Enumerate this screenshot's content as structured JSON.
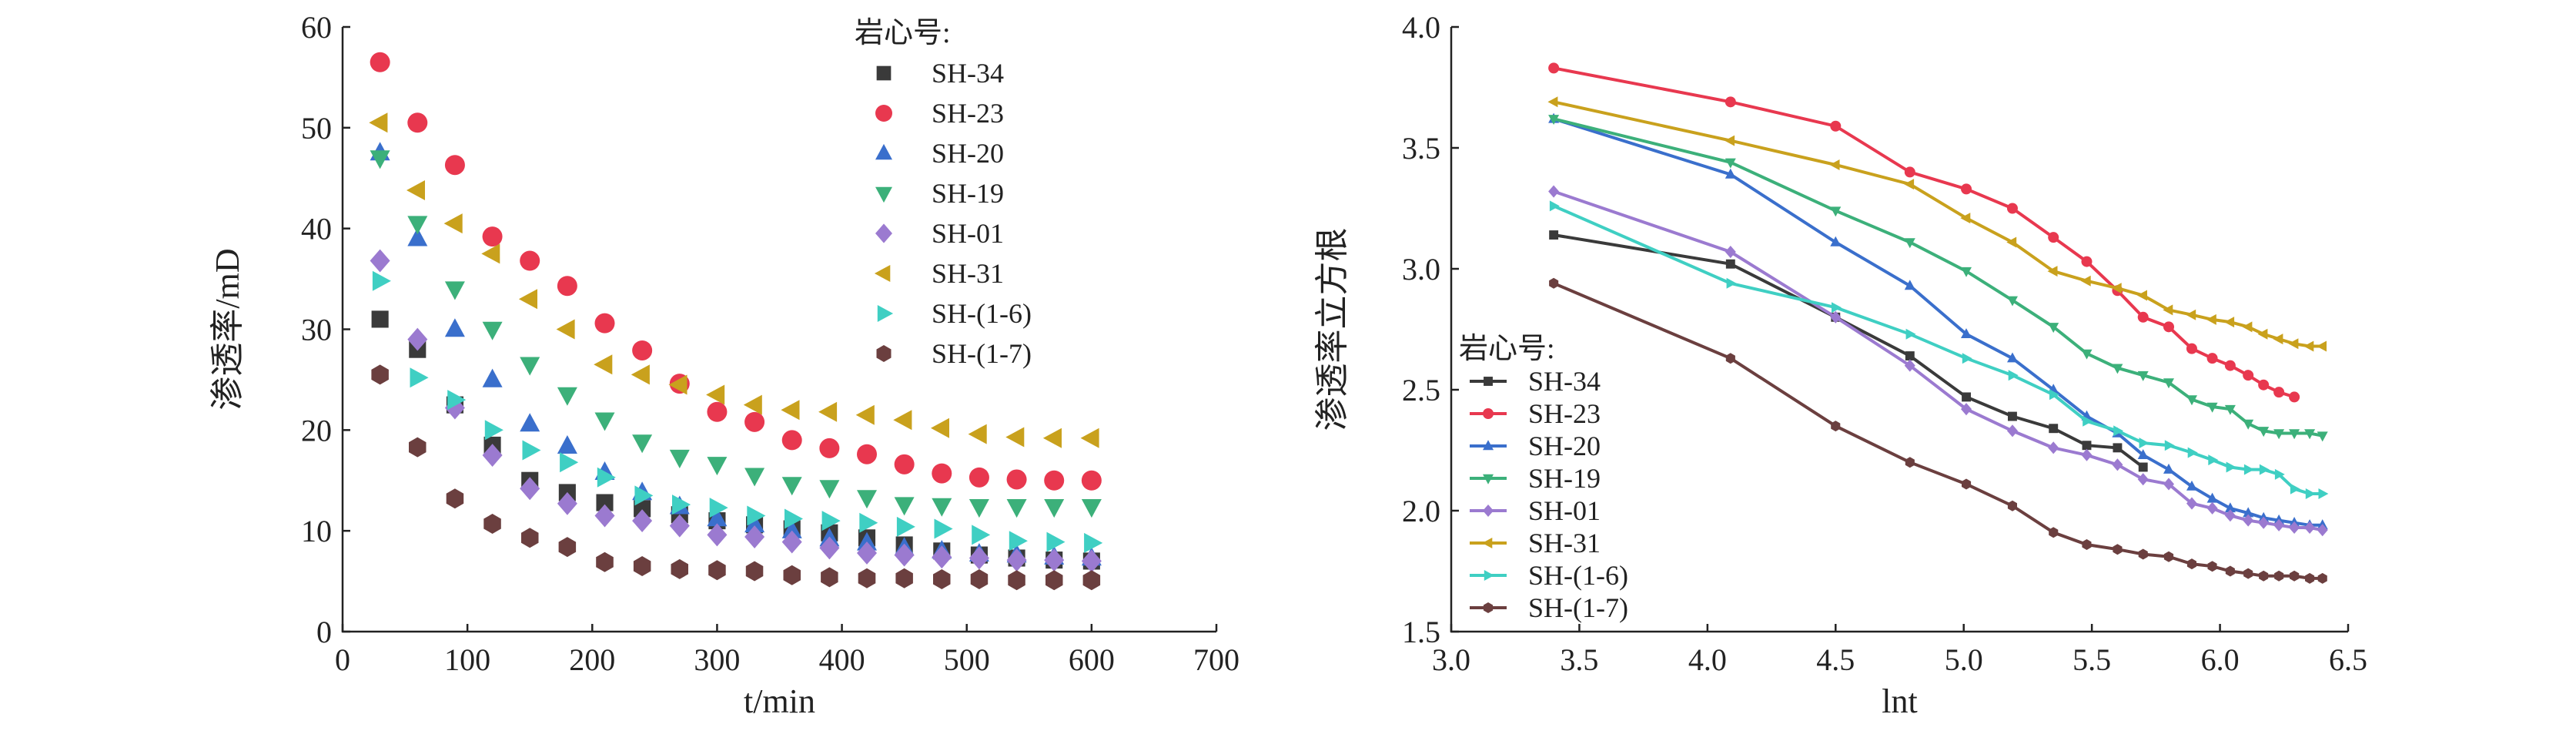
{
  "chart_data": [
    {
      "type": "scatter",
      "xlabel": "t/min",
      "ylabel": "渗透率/mD",
      "xlim": [
        0,
        700
      ],
      "ylim": [
        0,
        60
      ],
      "xticks": [
        0,
        100,
        200,
        300,
        400,
        500,
        600,
        700
      ],
      "yticks": [
        0,
        10,
        20,
        30,
        40,
        50,
        60
      ],
      "grid": false,
      "legend_title": "岩心号:",
      "legend_position": "top-right",
      "x": [
        30,
        60,
        90,
        120,
        150,
        180,
        210,
        240,
        270,
        300,
        330,
        360,
        390,
        420,
        450,
        480,
        510,
        540,
        570,
        600
      ],
      "series": [
        {
          "name": "SH-34",
          "marker": "square",
          "color": "#3a3a3a",
          "values": [
            31,
            28,
            22.5,
            18.5,
            15,
            13.8,
            12.8,
            12.2,
            11.6,
            11,
            10.6,
            10.2,
            9.8,
            9.3,
            8.6,
            8,
            7.6,
            7.3,
            7.1,
            7
          ]
        },
        {
          "name": "SH-23",
          "marker": "circle",
          "color": "#e8384f",
          "values": [
            56.5,
            50.5,
            46.3,
            39.2,
            36.8,
            34.3,
            30.6,
            27.9,
            24.6,
            21.8,
            20.8,
            19,
            18.2,
            17.6,
            16.6,
            15.7,
            15.3,
            15.1,
            15,
            15
          ]
        },
        {
          "name": "SH-20",
          "marker": "triangle-up",
          "color": "#3a6fcc",
          "values": [
            47.5,
            39,
            30,
            25,
            20.6,
            18.4,
            15.8,
            13.8,
            12.4,
            11.2,
            10.6,
            10,
            9.2,
            8.8,
            8.3,
            8,
            7.7,
            7.6,
            7.4,
            7.3
          ]
        },
        {
          "name": "SH-19",
          "marker": "triangle-down",
          "color": "#3cb07a",
          "values": [
            47,
            40.5,
            34,
            30,
            26.5,
            23.5,
            21,
            18.8,
            17.3,
            16.6,
            15.5,
            14.6,
            14.3,
            13.3,
            12.6,
            12.5,
            12.4,
            12.4,
            12.4,
            12.4
          ]
        },
        {
          "name": "SH-01",
          "marker": "diamond",
          "color": "#9b7ad0",
          "values": [
            36.8,
            29,
            22.2,
            17.5,
            14.2,
            12.7,
            11.5,
            11,
            10.5,
            9.6,
            9.4,
            8.9,
            8.3,
            7.8,
            7.6,
            7.4,
            7.3,
            7.1,
            7.1,
            7
          ]
        },
        {
          "name": "SH-31",
          "marker": "triangle-left",
          "color": "#c9a11d",
          "values": [
            50.5,
            43.8,
            40.5,
            37.5,
            33,
            30,
            26.5,
            25.5,
            24.5,
            23.5,
            22.5,
            22,
            21.8,
            21.5,
            21,
            20.2,
            19.6,
            19.3,
            19.2,
            19.2
          ]
        },
        {
          "name": "SH-(1-6)",
          "marker": "triangle-right",
          "color": "#3fcfc3",
          "values": [
            34.8,
            25.2,
            23,
            20,
            18,
            16.8,
            15.3,
            13.5,
            12.6,
            12.3,
            11.5,
            11.2,
            11,
            10.8,
            10.4,
            10.2,
            9.6,
            9,
            8.9,
            8.8
          ]
        },
        {
          "name": "SH-(1-7)",
          "marker": "hexagon",
          "color": "#6b3f3f",
          "values": [
            25.5,
            18.3,
            13.2,
            10.7,
            9.3,
            8.4,
            6.9,
            6.5,
            6.2,
            6.1,
            6,
            5.6,
            5.4,
            5.3,
            5.3,
            5.2,
            5.2,
            5.1,
            5.1,
            5.1
          ]
        }
      ]
    },
    {
      "type": "line",
      "xlabel": "lnt",
      "ylabel": "渗透率立方根",
      "xlim": [
        3.0,
        6.5
      ],
      "ylim": [
        1.5,
        4.0
      ],
      "xticks": [
        "3.0",
        "3.5",
        "4.0",
        "4.5",
        "5.0",
        "5.5",
        "6.0",
        "6.5"
      ],
      "yticks": [
        "1.5",
        "2.0",
        "2.5",
        "3.0",
        "3.5",
        "4.0"
      ],
      "grid": false,
      "legend_title": "岩心号:",
      "legend_position": "bottom-left",
      "x": [
        3.4,
        4.09,
        4.5,
        4.79,
        5.01,
        5.19,
        5.35,
        5.48,
        5.6,
        5.7,
        5.8,
        5.89,
        5.97,
        6.04,
        6.11,
        6.17,
        6.23,
        6.29,
        6.35,
        6.4
      ],
      "series": [
        {
          "name": "SH-34",
          "marker": "square",
          "color": "#3a3a3a",
          "values": [
            3.14,
            3.02,
            2.8,
            2.64,
            2.47,
            2.39,
            2.34,
            2.27,
            2.26,
            2.18,
            null,
            null,
            null,
            null,
            null,
            null,
            null,
            null,
            null,
            null
          ]
        },
        {
          "name": "SH-23",
          "marker": "circle",
          "color": "#e8384f",
          "values": [
            3.83,
            3.69,
            3.59,
            3.4,
            3.33,
            3.25,
            3.13,
            3.03,
            2.91,
            2.8,
            2.76,
            2.67,
            2.63,
            2.6,
            2.56,
            2.52,
            2.49,
            2.47,
            null,
            null
          ]
        },
        {
          "name": "SH-20",
          "marker": "triangle-up",
          "color": "#3a6fcc",
          "values": [
            3.62,
            3.39,
            3.11,
            2.93,
            2.73,
            2.63,
            2.5,
            2.39,
            2.32,
            2.23,
            2.17,
            2.1,
            2.05,
            2.01,
            1.99,
            1.97,
            1.96,
            1.95,
            1.94,
            1.94
          ]
        },
        {
          "name": "SH-19",
          "marker": "triangle-down",
          "color": "#3cb07a",
          "values": [
            3.62,
            3.44,
            3.24,
            3.11,
            2.99,
            2.87,
            2.76,
            2.65,
            2.59,
            2.56,
            2.53,
            2.46,
            2.43,
            2.42,
            2.36,
            2.33,
            2.32,
            2.32,
            2.32,
            2.31
          ]
        },
        {
          "name": "SH-01",
          "marker": "diamond",
          "color": "#9b7ad0",
          "values": [
            3.32,
            3.07,
            2.8,
            2.6,
            2.42,
            2.33,
            2.26,
            2.23,
            2.19,
            2.13,
            2.11,
            2.03,
            2.01,
            1.98,
            1.96,
            1.95,
            1.94,
            1.93,
            1.93,
            1.92
          ]
        },
        {
          "name": "SH-31",
          "marker": "triangle-left",
          "color": "#c9a11d",
          "values": [
            3.69,
            3.53,
            3.43,
            3.35,
            3.21,
            3.11,
            2.99,
            2.95,
            2.92,
            2.89,
            2.83,
            2.81,
            2.79,
            2.78,
            2.76,
            2.73,
            2.71,
            2.69,
            2.68,
            2.68
          ]
        },
        {
          "name": "SH-(1-6)",
          "marker": "triangle-right",
          "color": "#3fcfc3",
          "values": [
            3.26,
            2.94,
            2.84,
            2.73,
            2.63,
            2.56,
            2.48,
            2.37,
            2.33,
            2.28,
            2.27,
            2.24,
            2.21,
            2.18,
            2.17,
            2.17,
            2.15,
            2.09,
            2.07,
            2.07
          ]
        },
        {
          "name": "SH-(1-7)",
          "marker": "hexagon",
          "color": "#6b3f3f",
          "values": [
            2.94,
            2.63,
            2.35,
            2.2,
            2.11,
            2.02,
            1.91,
            1.86,
            1.84,
            1.82,
            1.81,
            1.78,
            1.77,
            1.75,
            1.74,
            1.73,
            1.73,
            1.73,
            1.72,
            1.72
          ]
        }
      ]
    }
  ]
}
